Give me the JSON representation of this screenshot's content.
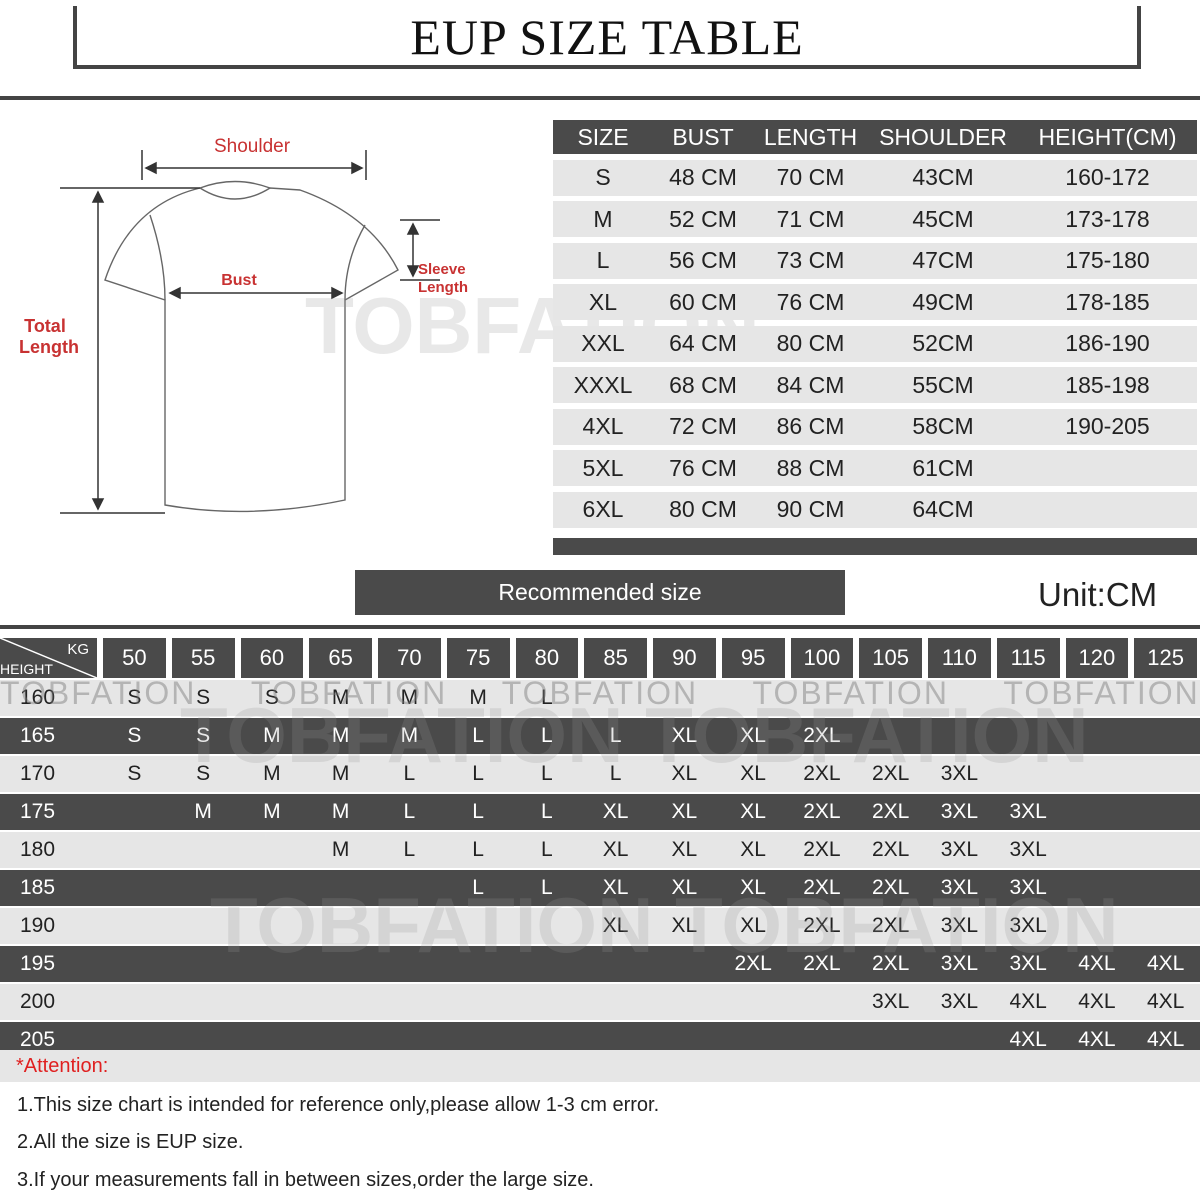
{
  "title": "EUP  SIZE TABLE",
  "diagram": {
    "shoulder": "Shoulder",
    "bust": "Bust",
    "sleeve": [
      "Sleeve",
      "Length"
    ],
    "total": [
      "Total",
      "Length"
    ]
  },
  "watermark": "TOBFATION",
  "size_table": {
    "headers": [
      "SIZE",
      "BUST",
      "LENGTH",
      "SHOULDER",
      "HEIGHT(CM)"
    ],
    "rows": [
      [
        "S",
        "48 CM",
        "70 CM",
        "43CM",
        "160-172"
      ],
      [
        "M",
        "52 CM",
        "71 CM",
        "45CM",
        "173-178"
      ],
      [
        "L",
        "56 CM",
        "73 CM",
        "47CM",
        "175-180"
      ],
      [
        "XL",
        "60 CM",
        "76 CM",
        "49CM",
        "178-185"
      ],
      [
        "XXL",
        "64 CM",
        "80 CM",
        "52CM",
        "186-190"
      ],
      [
        "XXXL",
        "68 CM",
        "84 CM",
        "55CM",
        "185-198"
      ],
      [
        "4XL",
        "72 CM",
        "86 CM",
        "58CM",
        "190-205"
      ],
      [
        "5XL",
        "76 CM",
        "88 CM",
        "61CM",
        ""
      ],
      [
        "6XL",
        "80 CM",
        "90 CM",
        "64CM",
        ""
      ]
    ]
  },
  "recommended_label": "Recommended size",
  "unit": "Unit:CM",
  "rec_table": {
    "kg_label": "KG",
    "height_label": "HEIGHT",
    "weights": [
      "50",
      "55",
      "60",
      "65",
      "70",
      "75",
      "80",
      "85",
      "90",
      "95",
      "100",
      "105",
      "110",
      "115",
      "120",
      "125"
    ],
    "rows": [
      {
        "height": "160",
        "sizes": [
          "S",
          "S",
          "S",
          "M",
          "M",
          "M",
          "L",
          "",
          "",
          "",
          "",
          "",
          "",
          "",
          "",
          ""
        ]
      },
      {
        "height": "165",
        "sizes": [
          "S",
          "S",
          "M",
          "M",
          "M",
          "L",
          "L",
          "L",
          "XL",
          "XL",
          "2XL",
          "",
          "",
          "",
          "",
          ""
        ]
      },
      {
        "height": "170",
        "sizes": [
          "S",
          "S",
          "M",
          "M",
          "L",
          "L",
          "L",
          "L",
          "XL",
          "XL",
          "2XL",
          "2XL",
          "3XL",
          "",
          "",
          ""
        ]
      },
      {
        "height": "175",
        "sizes": [
          "",
          "M",
          "M",
          "M",
          "L",
          "L",
          "L",
          "XL",
          "XL",
          "XL",
          "2XL",
          "2XL",
          "3XL",
          "3XL",
          "",
          ""
        ]
      },
      {
        "height": "180",
        "sizes": [
          "",
          "",
          "",
          "M",
          "L",
          "L",
          "L",
          "XL",
          "XL",
          "XL",
          "2XL",
          "2XL",
          "3XL",
          "3XL",
          "",
          ""
        ]
      },
      {
        "height": "185",
        "sizes": [
          "",
          "",
          "",
          "",
          "",
          "L",
          "L",
          "XL",
          "XL",
          "XL",
          "2XL",
          "2XL",
          "3XL",
          "3XL",
          "",
          ""
        ]
      },
      {
        "height": "190",
        "sizes": [
          "",
          "",
          "",
          "",
          "",
          "",
          "",
          "XL",
          "XL",
          "XL",
          "2XL",
          "2XL",
          "3XL",
          "3XL",
          "",
          ""
        ]
      },
      {
        "height": "195",
        "sizes": [
          "",
          "",
          "",
          "",
          "",
          "",
          "",
          "",
          "",
          "2XL",
          "2XL",
          "2XL",
          "3XL",
          "3XL",
          "4XL",
          "4XL"
        ]
      },
      {
        "height": "200",
        "sizes": [
          "",
          "",
          "",
          "",
          "",
          "",
          "",
          "",
          "",
          "",
          "",
          "3XL",
          "3XL",
          "4XL",
          "4XL",
          "4XL"
        ]
      },
      {
        "height": "205",
        "sizes": [
          "",
          "",
          "",
          "",
          "",
          "",
          "",
          "",
          "",
          "",
          "",
          "",
          "",
          "4XL",
          "4XL",
          "4XL"
        ]
      }
    ]
  },
  "attention": "*Attention:",
  "notes": [
    "1.This size chart is intended for reference only,please allow 1-3 cm error.",
    "2.All the size is EUP size.",
    "3.If your measurements fall in between sizes,order the large size."
  ],
  "colors": {
    "dark": "#4a4a4a",
    "light": "#e6e6e6",
    "label_red": "#c83232",
    "attention_red": "#e02020"
  }
}
